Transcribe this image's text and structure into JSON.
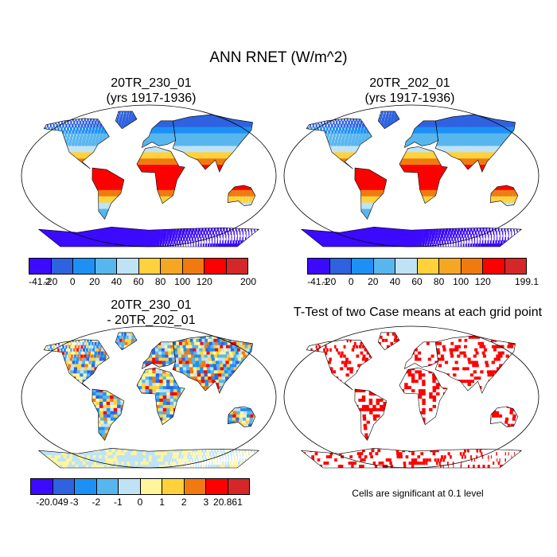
{
  "chart_data": [
    {
      "type": "heatmap",
      "title": "20TR_230_01",
      "subtitle": "(yrs 1917-1936)",
      "variable": "RNET",
      "units": "W/m^2",
      "colorbar": {
        "levels": [
          "-41.2",
          "-20",
          "0",
          "20",
          "40",
          "60",
          "80",
          "100",
          "120",
          "200"
        ],
        "colors": [
          "#3b0aff",
          "#2f62e0",
          "#1e90f5",
          "#58b6ee",
          "#bfe3f5",
          "#ffd23c",
          "#f5a623",
          "#f07a10",
          "#ff0000",
          "#d62728"
        ]
      }
    },
    {
      "type": "heatmap",
      "title": "20TR_202_01",
      "subtitle": "(yrs 1917-1936)",
      "variable": "RNET",
      "units": "W/m^2",
      "colorbar": {
        "levels": [
          "-41.1",
          "-20",
          "0",
          "20",
          "40",
          "60",
          "80",
          "100",
          "120",
          "199.1"
        ],
        "colors": [
          "#3b0aff",
          "#2f62e0",
          "#1e90f5",
          "#58b6ee",
          "#bfe3f5",
          "#ffd23c",
          "#f5a623",
          "#f07a10",
          "#ff0000",
          "#d62728"
        ]
      }
    },
    {
      "type": "heatmap",
      "title": "20TR_230_01",
      "subtitle": "- 20TR_202_01",
      "variable": "RNET difference",
      "units": "W/m^2",
      "colorbar": {
        "levels": [
          "-20.049",
          "-3",
          "-2",
          "-1",
          "0",
          "1",
          "2",
          "3",
          "20.861"
        ],
        "colors": [
          "#3b0aff",
          "#2f62e0",
          "#1e90f5",
          "#58b6ee",
          "#bfe3f5",
          "#fff59d",
          "#ffd23c",
          "#f07a10",
          "#ff0000",
          "#d62728"
        ]
      }
    },
    {
      "type": "heatmap",
      "title": "T-Test of two Case means at each grid point",
      "note": "Cells are significant at 0.1 level",
      "colors": [
        "#ff0000"
      ]
    }
  ],
  "page": {
    "title": "ANN RNET (W/m^2)"
  }
}
